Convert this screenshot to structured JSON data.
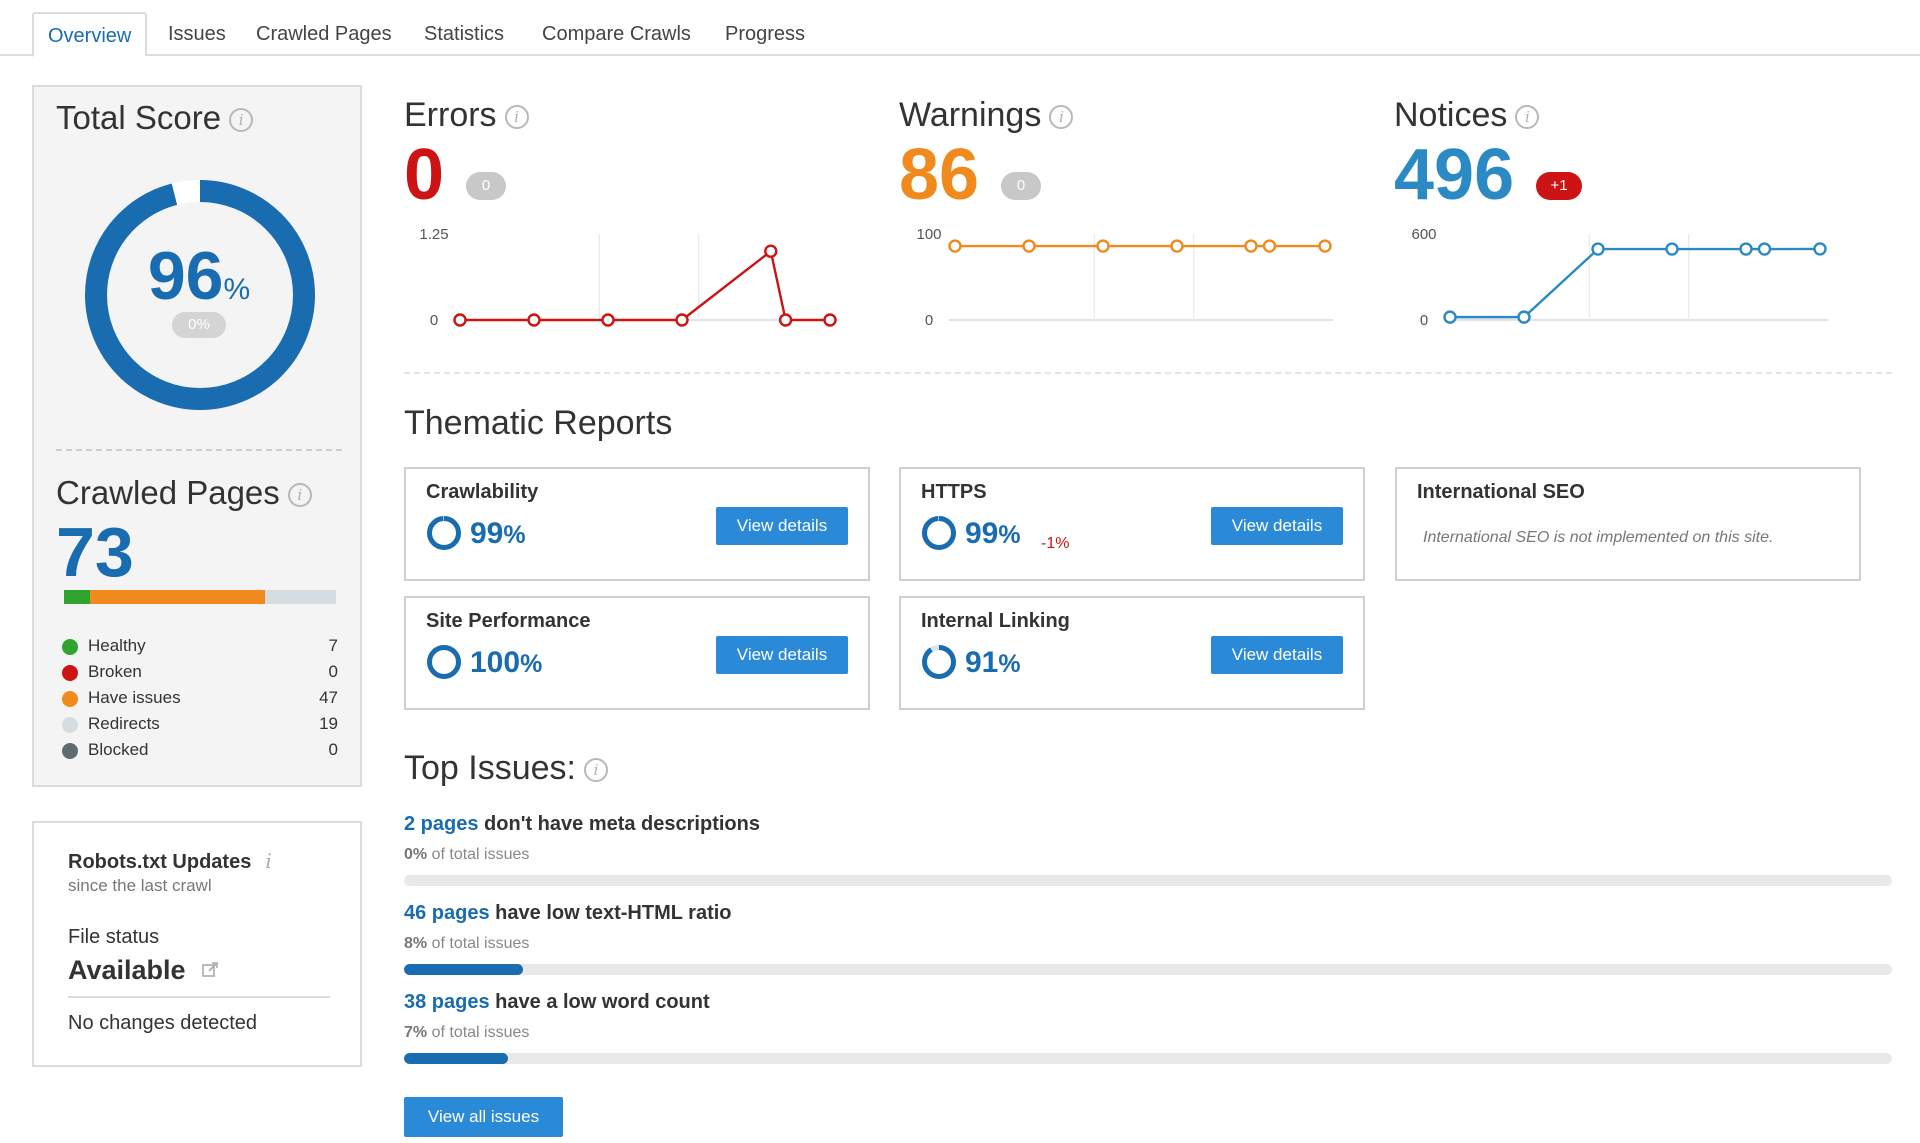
{
  "tabs": [
    {
      "label": "Overview",
      "active": true
    },
    {
      "label": "Issues"
    },
    {
      "label": "Crawled Pages"
    },
    {
      "label": "Statistics"
    },
    {
      "label": "Compare Crawls"
    },
    {
      "label": "Progress"
    }
  ],
  "total_score": {
    "title": "Total Score",
    "value": "96",
    "unit": "%",
    "delta": "0%",
    "percent": 96,
    "color": "#1a6cb0"
  },
  "crawled_pages": {
    "title": "Crawled Pages",
    "count": "73",
    "legend": [
      {
        "label": "Healthy",
        "count": "7",
        "value": 7,
        "color": "#2ea42e"
      },
      {
        "label": "Broken",
        "count": "0",
        "value": 0,
        "color": "#cc1414"
      },
      {
        "label": "Have issues",
        "count": "47",
        "value": 47,
        "color": "#f08a1c"
      },
      {
        "label": "Redirects",
        "count": "19",
        "value": 19,
        "color": "#d5dde0"
      },
      {
        "label": "Blocked",
        "count": "0",
        "value": 0,
        "color": "#5f6b73"
      }
    ]
  },
  "robots": {
    "title": "Robots.txt Updates",
    "subtitle": "since the last crawl",
    "status_label": "File status",
    "status": "Available",
    "changes": "No changes detected"
  },
  "metrics": [
    {
      "title": "Errors",
      "value": "0",
      "badge": "0",
      "badge_color": "#c8c8c8",
      "color": "#cc1414",
      "chart_data": {
        "type": "line",
        "ylim": [
          0,
          1.25
        ],
        "ytick_labels": [
          "1.25",
          "0"
        ],
        "values": [
          0,
          0,
          0,
          0,
          1,
          0,
          0
        ],
        "x": [
          0,
          1,
          2,
          3,
          4.2,
          4.4,
          5
        ]
      }
    },
    {
      "title": "Warnings",
      "value": "86",
      "badge": "0",
      "badge_color": "#c8c8c8",
      "color": "#f08a1c",
      "chart_data": {
        "type": "line",
        "ylim": [
          0,
          100
        ],
        "ytick_labels": [
          "100",
          "0"
        ],
        "values": [
          86,
          86,
          86,
          86,
          86,
          86,
          86
        ],
        "x": [
          0,
          1,
          2,
          3,
          4,
          4.25,
          5
        ]
      }
    },
    {
      "title": "Notices",
      "value": "496",
      "badge": "+1",
      "badge_color": "#cc1414",
      "color": "#2b8ac4",
      "chart_data": {
        "type": "line",
        "ylim": [
          0,
          600
        ],
        "ytick_labels": [
          "600",
          "0"
        ],
        "values": [
          20,
          20,
          495,
          495,
          495,
          495,
          496
        ],
        "x": [
          0,
          1,
          2,
          3,
          4,
          4.25,
          5
        ]
      }
    }
  ],
  "thematic": {
    "title": "Thematic Reports",
    "button_label": "View details",
    "cards": [
      {
        "name": "Crawlability",
        "value": "99",
        "percent": 99,
        "delta": ""
      },
      {
        "name": "HTTPS",
        "value": "99",
        "percent": 99,
        "delta": "-1%"
      },
      {
        "name": "International SEO",
        "note": "International SEO is not implemented on this site."
      },
      {
        "name": "Site Performance",
        "value": "100",
        "percent": 100,
        "delta": ""
      },
      {
        "name": "Internal Linking",
        "value": "91",
        "percent": 91,
        "delta": ""
      }
    ]
  },
  "top_issues": {
    "title": "Top Issues:",
    "suffix": "of total issues",
    "items": [
      {
        "count": "2 pages",
        "text": "don't have meta descriptions",
        "share": "0%",
        "percent": 0
      },
      {
        "count": "46 pages",
        "text": "have low text-HTML ratio",
        "share": "8%",
        "percent": 8
      },
      {
        "count": "38 pages",
        "text": "have a low word count",
        "share": "7%",
        "percent": 7
      }
    ],
    "view_all": "View all issues"
  }
}
